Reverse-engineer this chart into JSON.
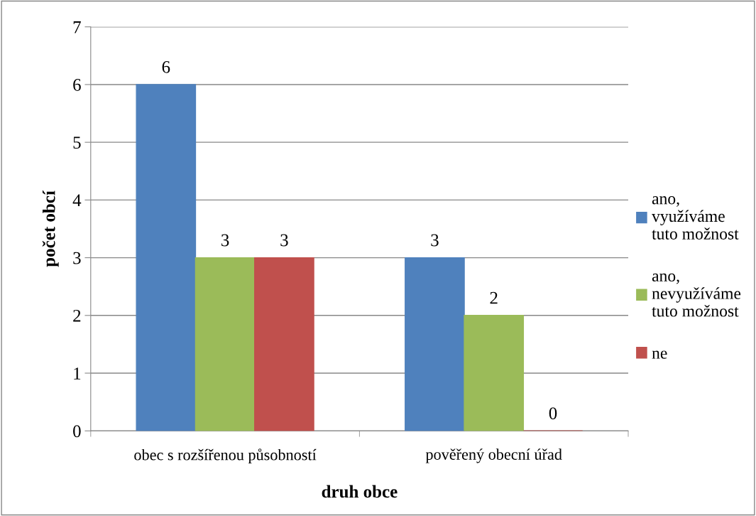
{
  "chart_data": {
    "type": "bar",
    "xlabel": "druh obce",
    "ylabel": "počet obcí",
    "categories": [
      "obec s rozšířenou působností",
      "pověřený obecní úřad"
    ],
    "series": [
      {
        "name": "ano, využíváme tuto možnost",
        "color": "#4f81bd",
        "values": [
          6,
          3
        ]
      },
      {
        "name": "ano, nevyužíváme tuto možnost",
        "color": "#9bbb59",
        "values": [
          3,
          2
        ]
      },
      {
        "name": "ne",
        "color": "#c0504d",
        "values": [
          3,
          0
        ]
      }
    ],
    "ylim": [
      0,
      7
    ],
    "yticks": [
      0,
      1,
      2,
      3,
      4,
      5,
      6,
      7
    ],
    "grid": "y",
    "legend": "right",
    "data_labels": true
  }
}
